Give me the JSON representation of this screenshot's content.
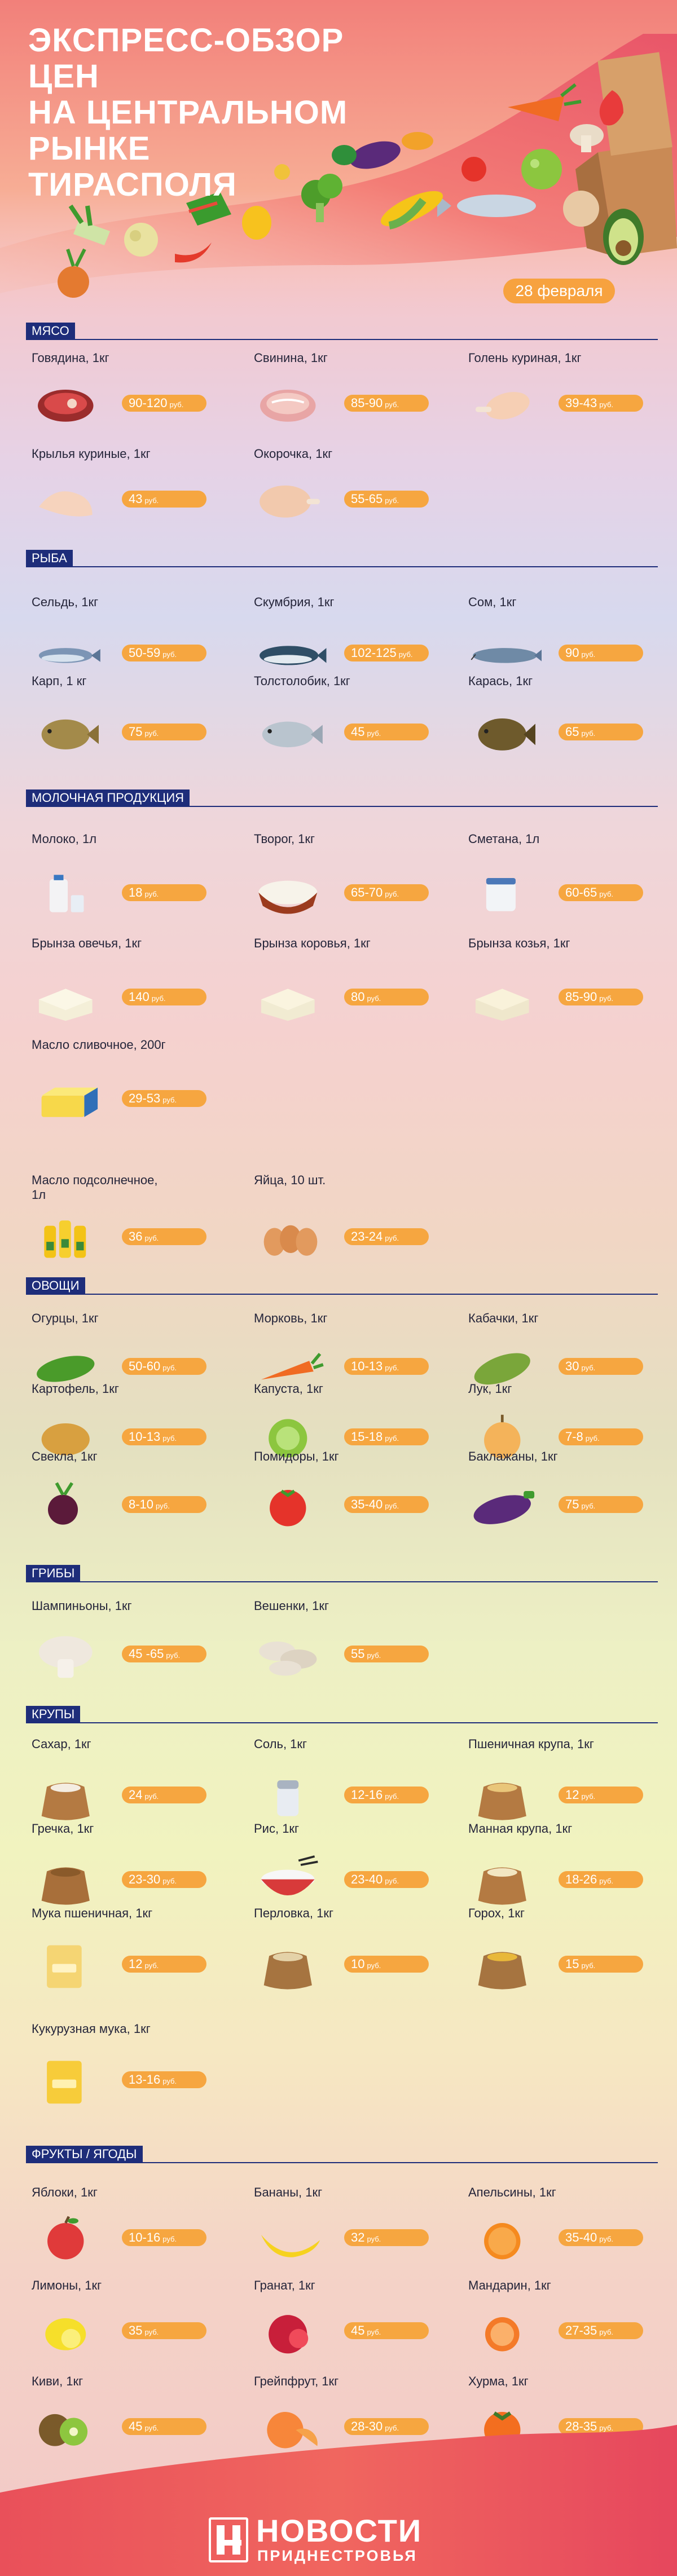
{
  "header": {
    "title_line1": "ЭКСПРЕСС-ОБЗОР ЦЕН",
    "title_line2": "НА ЦЕНТРАЛЬНОМ РЫНКЕ",
    "title_line3": "ТИРАСПОЛЯ",
    "date": "28 февраля"
  },
  "currency": "руб.",
  "sections": {
    "meat": {
      "title": "МЯСО",
      "items": [
        {
          "name": "Говядина, 1кг",
          "price": "90-120",
          "icon": "beef-icon"
        },
        {
          "name": "Свинина, 1кг",
          "price": "85-90",
          "icon": "pork-icon"
        },
        {
          "name": "Голень куриная, 1кг",
          "price": "39-43",
          "icon": "chicken-drumstick-icon"
        },
        {
          "name": "Крылья куриные, 1кг",
          "price": "43",
          "icon": "chicken-wing-icon"
        },
        {
          "name": "Окорочка, 1кг",
          "price": "55-65",
          "icon": "chicken-leg-icon"
        }
      ]
    },
    "fish": {
      "title": "РЫБА",
      "items": [
        {
          "name": "Сельдь, 1кг",
          "price": "50-59",
          "icon": "herring-icon"
        },
        {
          "name": "Скумбрия, 1кг",
          "price": "102-125",
          "icon": "mackerel-icon"
        },
        {
          "name": "Сом, 1кг",
          "price": "90",
          "icon": "catfish-icon"
        },
        {
          "name": "Карп, 1 кг",
          "price": "75",
          "icon": "carp-icon"
        },
        {
          "name": "Толстолобик, 1кг",
          "price": "45",
          "icon": "silver-carp-icon"
        },
        {
          "name": "Карась, 1кг",
          "price": "65",
          "icon": "crucian-icon"
        }
      ]
    },
    "dairy": {
      "title": "МОЛОЧНАЯ ПРОДУКЦИЯ",
      "items": [
        {
          "name": "Молоко, 1л",
          "price": "18",
          "icon": "milk-icon"
        },
        {
          "name": "Творог, 1кг",
          "price": "65-70",
          "icon": "cottage-cheese-icon"
        },
        {
          "name": "Сметана, 1л",
          "price": "60-65",
          "icon": "sour-cream-icon"
        },
        {
          "name": "Брынза овечья, 1кг",
          "price": "140",
          "icon": "sheep-cheese-icon"
        },
        {
          "name": "Брынза коровья, 1кг",
          "price": "80",
          "icon": "cow-cheese-icon"
        },
        {
          "name": "Брынза козья, 1кг",
          "price": "85-90",
          "icon": "goat-cheese-icon"
        },
        {
          "name": "Масло сливочное, 200г",
          "price": "29-53",
          "icon": "butter-icon"
        }
      ]
    },
    "misc": {
      "items": [
        {
          "name": "Масло подсолнечное, 1л",
          "price": "36",
          "icon": "sunflower-oil-icon"
        },
        {
          "name": "Яйца, 10 шт.",
          "price": "23-24",
          "icon": "eggs-icon"
        }
      ]
    },
    "veg": {
      "title": "ОВОЩИ",
      "items": [
        {
          "name": "Огурцы, 1кг",
          "price": "50-60",
          "icon": "cucumber-icon"
        },
        {
          "name": "Морковь, 1кг",
          "price": "10-13",
          "icon": "carrot-icon"
        },
        {
          "name": "Кабачки, 1кг",
          "price": "30",
          "icon": "zucchini-icon"
        },
        {
          "name": "Картофель, 1кг",
          "price": "10-13",
          "icon": "potato-icon"
        },
        {
          "name": "Капуста, 1кг",
          "price": "15-18",
          "icon": "cabbage-icon"
        },
        {
          "name": "Лук, 1кг",
          "price": "7-8",
          "icon": "onion-icon"
        },
        {
          "name": "Свекла, 1кг",
          "price": "8-10",
          "icon": "beet-icon"
        },
        {
          "name": "Помидоры, 1кг",
          "price": "35-40",
          "icon": "tomato-icon"
        },
        {
          "name": "Баклажаны, 1кг",
          "price": "75",
          "icon": "eggplant-icon"
        }
      ]
    },
    "mushrooms": {
      "title": "ГРИБЫ",
      "items": [
        {
          "name": "Шампиньоны, 1кг",
          "price": "45 -65",
          "icon": "champignon-icon"
        },
        {
          "name": "Вешенки, 1кг",
          "price": "55",
          "icon": "oyster-mushroom-icon"
        }
      ]
    },
    "grains": {
      "title": "КРУПЫ",
      "items": [
        {
          "name": "Сахар, 1кг",
          "price": "24",
          "icon": "sugar-sack-icon"
        },
        {
          "name": "Соль, 1кг",
          "price": "12-16",
          "icon": "salt-shaker-icon"
        },
        {
          "name": "Пшеничная крупа, 1кг",
          "price": "12",
          "icon": "wheat-groats-icon"
        },
        {
          "name": "Гречка, 1кг",
          "price": "23-30",
          "icon": "buckwheat-icon"
        },
        {
          "name": "Рис, 1кг",
          "price": "23-40",
          "icon": "rice-bowl-icon"
        },
        {
          "name": "Манная крупа, 1кг",
          "price": "18-26",
          "icon": "semolina-icon"
        },
        {
          "name": "Мука пшеничная, 1кг",
          "price": "12",
          "icon": "flour-bag-icon"
        },
        {
          "name": "Перловка, 1кг",
          "price": "10",
          "icon": "barley-icon"
        },
        {
          "name": "Горох, 1кг",
          "price": "15",
          "icon": "peas-icon"
        },
        {
          "name": "Кукурузная мука, 1кг",
          "price": "13-16",
          "icon": "corn-flour-icon"
        }
      ]
    },
    "fruits": {
      "title": "ФРУКТЫ / ЯГОДЫ",
      "items": [
        {
          "name": "Яблоки, 1кг",
          "price": "10-16",
          "icon": "apple-icon"
        },
        {
          "name": "Бананы, 1кг",
          "price": "32",
          "icon": "banana-icon"
        },
        {
          "name": "Апельсины, 1кг",
          "price": "35-40",
          "icon": "orange-icon"
        },
        {
          "name": "Лимоны, 1кг",
          "price": "35",
          "icon": "lemon-icon"
        },
        {
          "name": "Гранат, 1кг",
          "price": "45",
          "icon": "pomegranate-icon"
        },
        {
          "name": "Мандарин, 1кг",
          "price": "27-35",
          "icon": "tangerine-icon"
        },
        {
          "name": "Киви, 1кг",
          "price": "45",
          "icon": "kiwi-icon"
        },
        {
          "name": "Грейпфрут, 1кг",
          "price": "28-30",
          "icon": "grapefruit-icon"
        },
        {
          "name": "Хурма, 1кг",
          "price": "28-35",
          "icon": "persimmon-icon"
        }
      ]
    }
  },
  "footer": {
    "logo_line1": "НОВОСТИ",
    "logo_line2": "ПРИДНЕСТРОВЬЯ"
  },
  "colors": {
    "accent": "#f6a640",
    "section": "#1e2d7a",
    "title": "#ffffff"
  }
}
